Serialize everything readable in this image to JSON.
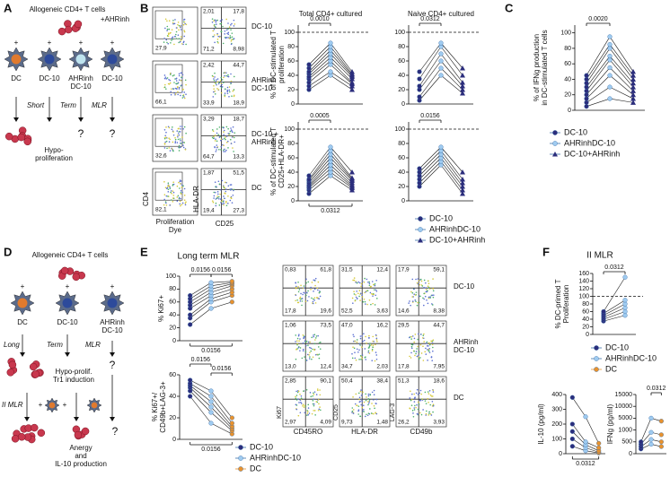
{
  "panels": {
    "A": {
      "label": "A",
      "title": "Allogeneic CD4+ T cells",
      "inhibitor": "+AHRinh",
      "plus": "+",
      "cells": [
        [
          "DC"
        ],
        [
          "DC-10"
        ],
        [
          "AHRinh",
          "DC-10"
        ],
        [
          "DC-10"
        ]
      ],
      "steps": [
        "Short",
        "Term",
        "MLR"
      ],
      "outcome": [
        "Hypo-",
        "proliferation"
      ],
      "unknown": "?"
    },
    "B": {
      "label": "B",
      "flow_rows": [
        {
          "name": [
            "DC-10"
          ],
          "left": "27,9",
          "right": [
            "2,01",
            "17,8",
            "71,2",
            "8,98"
          ]
        },
        {
          "name": [
            "AHRinh",
            "DC-10"
          ],
          "left": "66,1",
          "right": [
            "2,42",
            "44,7",
            "33,9",
            "18,9"
          ]
        },
        {
          "name": [
            "DC-10 +",
            "AHRinh"
          ],
          "left": "32,6",
          "right": [
            "3,29",
            "18,7",
            "64,7",
            "13,3"
          ]
        },
        {
          "name": [
            "DC"
          ],
          "left": "82,1",
          "right": [
            "1,87",
            "51,5",
            "19,4",
            "27,3"
          ]
        }
      ],
      "flow_axes": {
        "left_y": "CD4",
        "left_x": [
          "Proliferation",
          "Dye"
        ],
        "right_y": "HLA-DR",
        "right_x": "CD25"
      },
      "charts": [
        {
          "title": "Total CD4+ cultured",
          "ylabel": [
            "% of DC-stimulated T",
            "proliferation"
          ],
          "ylim": [
            0,
            110
          ],
          "yticks": [
            0,
            20,
            40,
            60,
            80,
            100
          ],
          "ref_line": 100,
          "pvalues": [
            "0.0010"
          ],
          "series": [
            {
              "name": "DC-10",
              "color": "#2b2d7c",
              "marker": "circle",
              "values": [
                20,
                25,
                30,
                35,
                38,
                42,
                45,
                50,
                55
              ]
            },
            {
              "name": "AHRinhDC-10",
              "color": "#9fcbf0",
              "marker": "circle",
              "values": [
                40,
                45,
                55,
                60,
                65,
                70,
                75,
                80,
                85
              ]
            },
            {
              "name": "DC-10+AHRinh",
              "color": "#2b2d7c",
              "marker": "triangle",
              "values": [
                20,
                25,
                28,
                30,
                35,
                38,
                40,
                42,
                45
              ]
            }
          ]
        },
        {
          "title": "Naive CD4+ cultured",
          "ylabel": [],
          "ylim": [
            0,
            110
          ],
          "yticks": [
            0,
            20,
            40,
            60,
            80,
            100
          ],
          "ref_line": 100,
          "pvalues": [
            "0.0312"
          ],
          "series": [
            {
              "name": "DC-10",
              "color": "#2b2d7c",
              "marker": "circle",
              "values": [
                5,
                10,
                20,
                25,
                35,
                45
              ]
            },
            {
              "name": "AHRinhDC-10",
              "color": "#9fcbf0",
              "marker": "circle",
              "values": [
                40,
                50,
                60,
                70,
                80,
                85
              ]
            },
            {
              "name": "DC-10+AHRinh",
              "color": "#2b2d7c",
              "marker": "triangle",
              "values": [
                15,
                20,
                25,
                30,
                40,
                50
              ]
            }
          ]
        },
        {
          "title": "",
          "ylabel": [
            "% of DC-stimulated T",
            "CD25+HLA-DR+"
          ],
          "ylim": [
            0,
            110
          ],
          "yticks": [
            0,
            20,
            40,
            60,
            80,
            100
          ],
          "ref_line": 100,
          "pvalues": [
            "0.0005",
            "0.0312"
          ],
          "series": [
            {
              "name": "DC-10",
              "color": "#2b2d7c",
              "marker": "circle",
              "values": [
                10,
                15,
                18,
                20,
                22,
                25,
                28,
                30,
                35
              ]
            },
            {
              "name": "AHRinhDC-10",
              "color": "#9fcbf0",
              "marker": "circle",
              "values": [
                35,
                40,
                45,
                50,
                55,
                60,
                65,
                70,
                75
              ]
            },
            {
              "name": "DC-10+AHRinh",
              "color": "#2b2d7c",
              "marker": "triangle",
              "values": [
                15,
                18,
                20,
                22,
                25,
                28,
                30,
                32,
                40
              ]
            }
          ]
        },
        {
          "title": "",
          "ylabel": [],
          "ylim": [
            0,
            110
          ],
          "yticks": [
            0,
            20,
            40,
            60,
            80,
            100
          ],
          "ref_line": 100,
          "pvalues": [
            "0.0156"
          ],
          "series": [
            {
              "name": "DC-10",
              "color": "#2b2d7c",
              "marker": "circle",
              "values": [
                20,
                25,
                30,
                35,
                40,
                45
              ]
            },
            {
              "name": "AHRinhDC-10",
              "color": "#9fcbf0",
              "marker": "circle",
              "values": [
                50,
                55,
                60,
                65,
                70,
                75
              ]
            },
            {
              "name": "DC-10+AHRinh",
              "color": "#2b2d7c",
              "marker": "triangle",
              "values": [
                10,
                15,
                20,
                25,
                30,
                40
              ]
            }
          ]
        }
      ]
    },
    "C": {
      "label": "C",
      "charts": [
        {
          "title": "",
          "ylabel": [
            "% of IFNg production",
            "in DC-stimulated T cells"
          ],
          "ylim": [
            0,
            110
          ],
          "yticks": [
            0,
            20,
            40,
            60,
            80,
            100
          ],
          "pvalues": [
            "0.0020"
          ],
          "series": [
            {
              "name": "DC-10",
              "color": "#2b2d7c",
              "marker": "circle",
              "values": [
                5,
                10,
                15,
                20,
                25,
                30,
                35,
                40,
                45
              ]
            },
            {
              "name": "AHRinhDC-10",
              "color": "#9fcbf0",
              "marker": "circle",
              "values": [
                15,
                30,
                45,
                55,
                65,
                70,
                80,
                85,
                95
              ]
            },
            {
              "name": "DC-10+AHRinh",
              "color": "#2b2d7c",
              "marker": "triangle",
              "values": [
                10,
                15,
                20,
                25,
                30,
                35,
                40,
                45,
                50
              ]
            }
          ]
        }
      ]
    },
    "D": {
      "label": "D",
      "title": "Allogeneic CD4+ T cells",
      "plus": "+",
      "cells": [
        [
          "DC"
        ],
        [
          "DC-10"
        ],
        [
          "AHRinh",
          "DC-10"
        ]
      ],
      "steps": [
        "Long",
        "Term",
        "MLR"
      ],
      "outcome": [
        "Hypo-prolif.",
        "Tr1 induction"
      ],
      "second": "II MLR",
      "final": [
        "Anergy",
        "and",
        "IL-10 production"
      ],
      "unknown": "?"
    },
    "E": {
      "label": "E",
      "title": "Long term MLR",
      "charts": [
        {
          "title": "",
          "ylabel": [
            "% Ki67+"
          ],
          "ylim": [
            0,
            100
          ],
          "yticks": [
            0,
            20,
            40,
            60,
            80,
            100
          ],
          "pvalues": [
            "0.0156",
            "0.0156",
            "0.0156"
          ],
          "series": [
            {
              "name": "DC-10",
              "color": "#2b2d7c",
              "marker": "circle",
              "values": [
                25,
                35,
                40,
                50,
                55,
                60,
                65,
                70
              ]
            },
            {
              "name": "AHRinhDC-10",
              "color": "#9fcbf0",
              "marker": "circle",
              "values": [
                50,
                60,
                65,
                70,
                75,
                80,
                85,
                90
              ]
            },
            {
              "name": "DC",
              "color": "#e8922e",
              "marker": "circle",
              "values": [
                60,
                70,
                75,
                80,
                85,
                88,
                90,
                92
              ]
            }
          ]
        },
        {
          "title": "",
          "ylabel": [
            "% Ki67+/",
            "CD49b+LAG-3+"
          ],
          "ylim": [
            0,
            60
          ],
          "yticks": [
            0,
            20,
            40,
            60
          ],
          "pvalues": [
            "0.0156",
            "0.0156",
            "0.0156"
          ],
          "series": [
            {
              "name": "DC-10",
              "color": "#2b2d7c",
              "marker": "circle",
              "values": [
                40,
                45,
                48,
                50,
                52,
                55
              ]
            },
            {
              "name": "AHRinhDC-10",
              "color": "#9fcbf0",
              "marker": "circle",
              "values": [
                15,
                25,
                30,
                35,
                40,
                45
              ]
            },
            {
              "name": "DC",
              "color": "#e8922e",
              "marker": "circle",
              "values": [
                5,
                8,
                10,
                12,
                15,
                20
              ]
            }
          ]
        }
      ],
      "flow_rows": [
        {
          "name": [
            "DC-10"
          ],
          "plots": [
            [
              "0,83",
              "61,8",
              "17,8",
              "19,6"
            ],
            [
              "31,5",
              "12,4",
              "52,5",
              "3,63"
            ],
            [
              "17,9",
              "59,1",
              "14,6",
              "8,38"
            ]
          ]
        },
        {
          "name": [
            "AHRinh",
            "DC-10"
          ],
          "plots": [
            [
              "1,06",
              "73,5",
              "13,0",
              "12,4"
            ],
            [
              "47,0",
              "16,2",
              "34,7",
              "2,03"
            ],
            [
              "29,5",
              "44,7",
              "17,8",
              "7,95"
            ]
          ]
        },
        {
          "name": [
            "DC"
          ],
          "plots": [
            [
              "2,85",
              "90,1",
              "2,97",
              "4,09"
            ],
            [
              "50,4",
              "38,4",
              "9,73",
              "1,48"
            ],
            [
              "51,3",
              "18,6",
              "26,2",
              "3,93"
            ]
          ]
        }
      ],
      "flow_axes": [
        [
          "Ki67",
          "CD45RO"
        ],
        [
          "CD25",
          "HLA-DR"
        ],
        [
          "LAG-3",
          "CD49b"
        ]
      ]
    },
    "F": {
      "label": "F",
      "title": "II MLR",
      "charts": [
        {
          "title": "",
          "ylabel": [
            "% DC-primed T",
            "Proliferation"
          ],
          "ylim": [
            0,
            160
          ],
          "yticks": [
            0,
            20,
            40,
            60,
            80,
            100,
            120,
            140,
            160
          ],
          "ref_line": 100,
          "axis_break": true,
          "pvalues": [
            "0.0312"
          ],
          "series": [
            {
              "name": "DC-10",
              "color": "#2b2d7c",
              "marker": "circle",
              "values": [
                35,
                40,
                45,
                50,
                55,
                60
              ]
            },
            {
              "name": "AHRinhDC-10",
              "color": "#9fcbf0",
              "marker": "circle",
              "values": [
                50,
                60,
                70,
                80,
                90,
                150
              ]
            }
          ]
        },
        {
          "title": "",
          "ylabel": [
            "IL-10 (pg/ml)"
          ],
          "ylim": [
            0,
            400
          ],
          "yticks": [
            0,
            100,
            200,
            300,
            400
          ],
          "pvalues": [
            "0.0312"
          ],
          "series": [
            {
              "name": "DC-10",
              "color": "#2b2d7c",
              "marker": "circle",
              "values": [
                50,
                100,
                150,
                200,
                380
              ]
            },
            {
              "name": "AHRinhDC-10",
              "color": "#9fcbf0",
              "marker": "circle",
              "values": [
                20,
                40,
                60,
                80,
                250
              ]
            },
            {
              "name": "DC",
              "color": "#e8922e",
              "marker": "circle",
              "values": [
                5,
                10,
                20,
                40,
                70
              ]
            }
          ]
        },
        {
          "title": "",
          "ylabel": [
            "IFNg (pg/ml)"
          ],
          "ylim": [
            0,
            15000
          ],
          "yticks": [
            0,
            500,
            1000,
            5000,
            10000,
            15000
          ],
          "axis_break": true,
          "pvalues": [
            "0.0312"
          ],
          "series": [
            {
              "name": "DC-10",
              "color": "#2b2d7c",
              "marker": "circle",
              "values": [
                200,
                300,
                400,
                500
              ]
            },
            {
              "name": "AHRinhDC-10",
              "color": "#9fcbf0",
              "marker": "circle",
              "values": [
                400,
                600,
                900,
                5000
              ]
            },
            {
              "name": "DC",
              "color": "#e8922e",
              "marker": "circle",
              "values": [
                300,
                500,
                800,
                4000
              ]
            }
          ]
        }
      ]
    }
  }
}
